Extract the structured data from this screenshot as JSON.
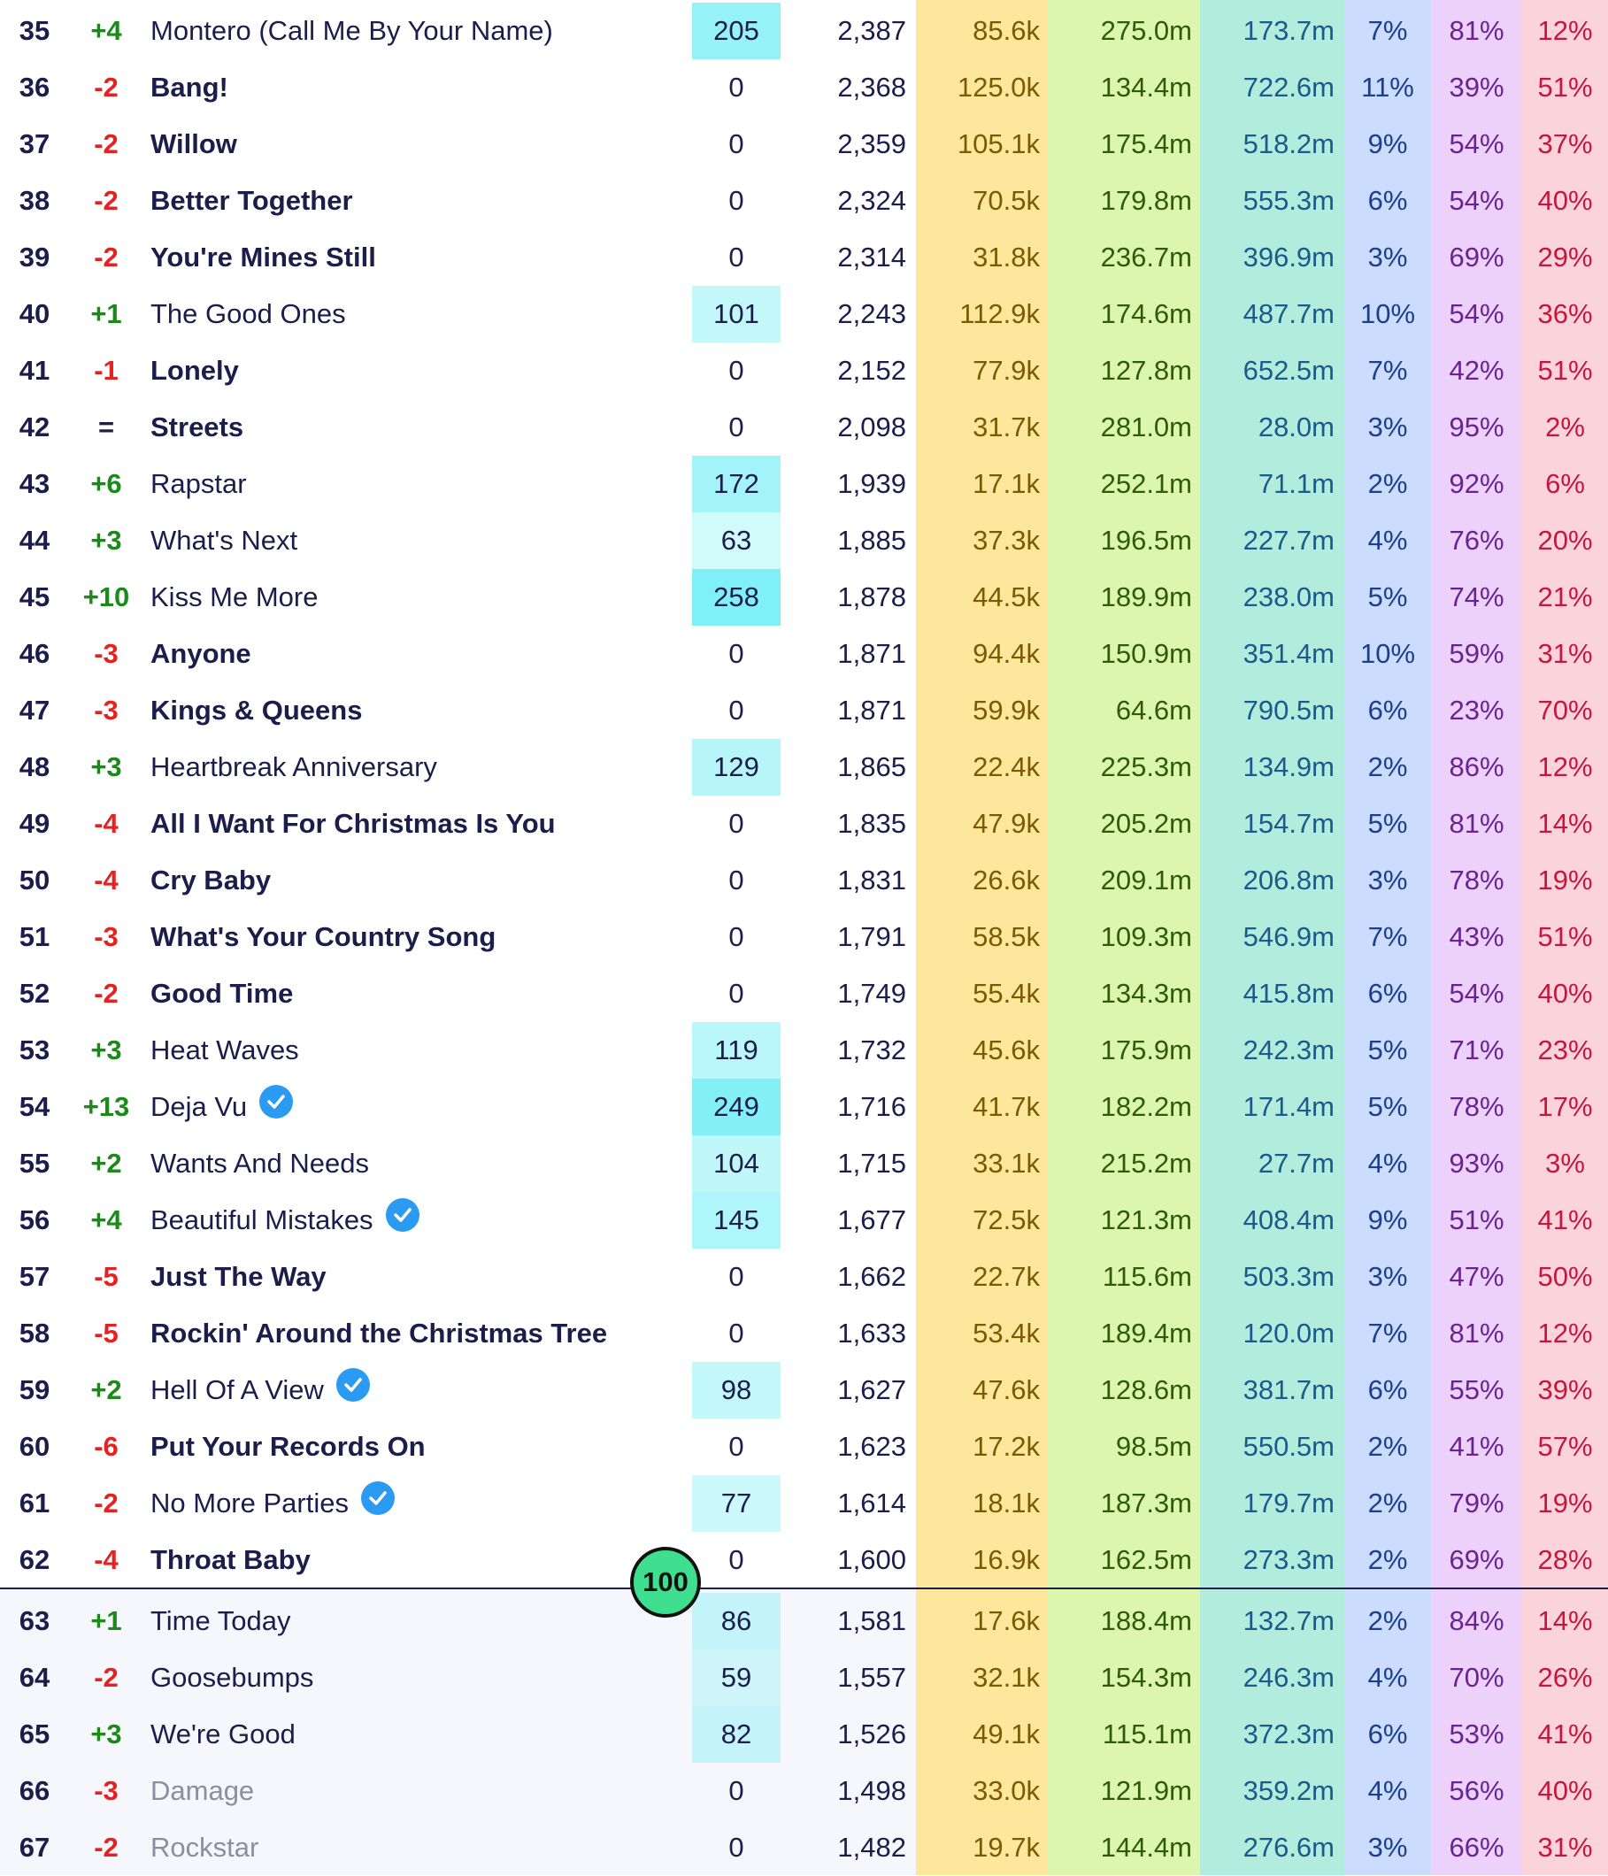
{
  "colors": {
    "plays_stripe": "#fde79c",
    "streams_stripe": "#dcf7ad",
    "total_stripe": "#b2ecdd",
    "pct1_stripe": "#cbdcff",
    "pct2_stripe": "#ecd2fa",
    "pct3_stripe": "#fbd3da",
    "spins_highlight": "#7ff0f5",
    "up": "#1b8a1b",
    "down": "#e52222",
    "milestone": "#3ee08f"
  },
  "milestone_badge": "100",
  "rows": [
    {
      "rank": "35",
      "change": "+4",
      "dir": "up",
      "title": "Montero (Call Me By Your Name)",
      "style": "normal",
      "verified": false,
      "spins": "205",
      "points": "2,387",
      "plays": "85.6k",
      "streams": "275.0m",
      "total": "173.7m",
      "pct1": "7%",
      "pct2": "81%",
      "pct3": "12%"
    },
    {
      "rank": "36",
      "change": "-2",
      "dir": "down",
      "title": "Bang!",
      "style": "bold",
      "verified": false,
      "spins": "0",
      "points": "2,368",
      "plays": "125.0k",
      "streams": "134.4m",
      "total": "722.6m",
      "pct1": "11%",
      "pct2": "39%",
      "pct3": "51%"
    },
    {
      "rank": "37",
      "change": "-2",
      "dir": "down",
      "title": "Willow",
      "style": "bold",
      "verified": false,
      "spins": "0",
      "points": "2,359",
      "plays": "105.1k",
      "streams": "175.4m",
      "total": "518.2m",
      "pct1": "9%",
      "pct2": "54%",
      "pct3": "37%"
    },
    {
      "rank": "38",
      "change": "-2",
      "dir": "down",
      "title": "Better Together",
      "style": "bold",
      "verified": false,
      "spins": "0",
      "points": "2,324",
      "plays": "70.5k",
      "streams": "179.8m",
      "total": "555.3m",
      "pct1": "6%",
      "pct2": "54%",
      "pct3": "40%"
    },
    {
      "rank": "39",
      "change": "-2",
      "dir": "down",
      "title": "You're Mines Still",
      "style": "bold",
      "verified": false,
      "spins": "0",
      "points": "2,314",
      "plays": "31.8k",
      "streams": "236.7m",
      "total": "396.9m",
      "pct1": "3%",
      "pct2": "69%",
      "pct3": "29%"
    },
    {
      "rank": "40",
      "change": "+1",
      "dir": "up",
      "title": "The Good Ones",
      "style": "normal",
      "verified": false,
      "spins": "101",
      "points": "2,243",
      "plays": "112.9k",
      "streams": "174.6m",
      "total": "487.7m",
      "pct1": "10%",
      "pct2": "54%",
      "pct3": "36%"
    },
    {
      "rank": "41",
      "change": "-1",
      "dir": "down",
      "title": "Lonely",
      "style": "bold",
      "verified": false,
      "spins": "0",
      "points": "2,152",
      "plays": "77.9k",
      "streams": "127.8m",
      "total": "652.5m",
      "pct1": "7%",
      "pct2": "42%",
      "pct3": "51%"
    },
    {
      "rank": "42",
      "change": "=",
      "dir": "same",
      "title": "Streets",
      "style": "bold",
      "verified": false,
      "spins": "0",
      "points": "2,098",
      "plays": "31.7k",
      "streams": "281.0m",
      "total": "28.0m",
      "pct1": "3%",
      "pct2": "95%",
      "pct3": "2%"
    },
    {
      "rank": "43",
      "change": "+6",
      "dir": "up",
      "title": "Rapstar",
      "style": "normal",
      "verified": false,
      "spins": "172",
      "points": "1,939",
      "plays": "17.1k",
      "streams": "252.1m",
      "total": "71.1m",
      "pct1": "2%",
      "pct2": "92%",
      "pct3": "6%"
    },
    {
      "rank": "44",
      "change": "+3",
      "dir": "up",
      "title": "What's Next",
      "style": "normal",
      "verified": false,
      "spins": "63",
      "points": "1,885",
      "plays": "37.3k",
      "streams": "196.5m",
      "total": "227.7m",
      "pct1": "4%",
      "pct2": "76%",
      "pct3": "20%"
    },
    {
      "rank": "45",
      "change": "+10",
      "dir": "up",
      "title": "Kiss Me More",
      "style": "normal",
      "verified": false,
      "spins": "258",
      "points": "1,878",
      "plays": "44.5k",
      "streams": "189.9m",
      "total": "238.0m",
      "pct1": "5%",
      "pct2": "74%",
      "pct3": "21%"
    },
    {
      "rank": "46",
      "change": "-3",
      "dir": "down",
      "title": "Anyone",
      "style": "bold",
      "verified": false,
      "spins": "0",
      "points": "1,871",
      "plays": "94.4k",
      "streams": "150.9m",
      "total": "351.4m",
      "pct1": "10%",
      "pct2": "59%",
      "pct3": "31%"
    },
    {
      "rank": "47",
      "change": "-3",
      "dir": "down",
      "title": "Kings & Queens",
      "style": "bold",
      "verified": false,
      "spins": "0",
      "points": "1,871",
      "plays": "59.9k",
      "streams": "64.6m",
      "total": "790.5m",
      "pct1": "6%",
      "pct2": "23%",
      "pct3": "70%"
    },
    {
      "rank": "48",
      "change": "+3",
      "dir": "up",
      "title": "Heartbreak Anniversary",
      "style": "normal",
      "verified": false,
      "spins": "129",
      "points": "1,865",
      "plays": "22.4k",
      "streams": "225.3m",
      "total": "134.9m",
      "pct1": "2%",
      "pct2": "86%",
      "pct3": "12%"
    },
    {
      "rank": "49",
      "change": "-4",
      "dir": "down",
      "title": "All I Want For Christmas Is You",
      "style": "bold",
      "verified": false,
      "spins": "0",
      "points": "1,835",
      "plays": "47.9k",
      "streams": "205.2m",
      "total": "154.7m",
      "pct1": "5%",
      "pct2": "81%",
      "pct3": "14%"
    },
    {
      "rank": "50",
      "change": "-4",
      "dir": "down",
      "title": "Cry Baby",
      "style": "bold",
      "verified": false,
      "spins": "0",
      "points": "1,831",
      "plays": "26.6k",
      "streams": "209.1m",
      "total": "206.8m",
      "pct1": "3%",
      "pct2": "78%",
      "pct3": "19%"
    },
    {
      "rank": "51",
      "change": "-3",
      "dir": "down",
      "title": "What's Your Country Song",
      "style": "bold",
      "verified": false,
      "spins": "0",
      "points": "1,791",
      "plays": "58.5k",
      "streams": "109.3m",
      "total": "546.9m",
      "pct1": "7%",
      "pct2": "43%",
      "pct3": "51%"
    },
    {
      "rank": "52",
      "change": "-2",
      "dir": "down",
      "title": "Good Time",
      "style": "bold",
      "verified": false,
      "spins": "0",
      "points": "1,749",
      "plays": "55.4k",
      "streams": "134.3m",
      "total": "415.8m",
      "pct1": "6%",
      "pct2": "54%",
      "pct3": "40%"
    },
    {
      "rank": "53",
      "change": "+3",
      "dir": "up",
      "title": "Heat Waves",
      "style": "normal",
      "verified": false,
      "spins": "119",
      "points": "1,732",
      "plays": "45.6k",
      "streams": "175.9m",
      "total": "242.3m",
      "pct1": "5%",
      "pct2": "71%",
      "pct3": "23%"
    },
    {
      "rank": "54",
      "change": "+13",
      "dir": "up",
      "title": "Deja Vu",
      "style": "normal",
      "verified": true,
      "spins": "249",
      "points": "1,716",
      "plays": "41.7k",
      "streams": "182.2m",
      "total": "171.4m",
      "pct1": "5%",
      "pct2": "78%",
      "pct3": "17%"
    },
    {
      "rank": "55",
      "change": "+2",
      "dir": "up",
      "title": "Wants And Needs",
      "style": "normal",
      "verified": false,
      "spins": "104",
      "points": "1,715",
      "plays": "33.1k",
      "streams": "215.2m",
      "total": "27.7m",
      "pct1": "4%",
      "pct2": "93%",
      "pct3": "3%"
    },
    {
      "rank": "56",
      "change": "+4",
      "dir": "up",
      "title": "Beautiful Mistakes",
      "style": "normal",
      "verified": true,
      "spins": "145",
      "points": "1,677",
      "plays": "72.5k",
      "streams": "121.3m",
      "total": "408.4m",
      "pct1": "9%",
      "pct2": "51%",
      "pct3": "41%"
    },
    {
      "rank": "57",
      "change": "-5",
      "dir": "down",
      "title": "Just The Way",
      "style": "bold",
      "verified": false,
      "spins": "0",
      "points": "1,662",
      "plays": "22.7k",
      "streams": "115.6m",
      "total": "503.3m",
      "pct1": "3%",
      "pct2": "47%",
      "pct3": "50%"
    },
    {
      "rank": "58",
      "change": "-5",
      "dir": "down",
      "title": "Rockin' Around the Christmas Tree",
      "style": "bold",
      "verified": false,
      "spins": "0",
      "points": "1,633",
      "plays": "53.4k",
      "streams": "189.4m",
      "total": "120.0m",
      "pct1": "7%",
      "pct2": "81%",
      "pct3": "12%"
    },
    {
      "rank": "59",
      "change": "+2",
      "dir": "up",
      "title": "Hell Of A View",
      "style": "normal",
      "verified": true,
      "spins": "98",
      "points": "1,627",
      "plays": "47.6k",
      "streams": "128.6m",
      "total": "381.7m",
      "pct1": "6%",
      "pct2": "55%",
      "pct3": "39%"
    },
    {
      "rank": "60",
      "change": "-6",
      "dir": "down",
      "title": "Put Your Records On",
      "style": "bold",
      "verified": false,
      "spins": "0",
      "points": "1,623",
      "plays": "17.2k",
      "streams": "98.5m",
      "total": "550.5m",
      "pct1": "2%",
      "pct2": "41%",
      "pct3": "57%"
    },
    {
      "rank": "61",
      "change": "-2",
      "dir": "down",
      "title": "No More Parties",
      "style": "normal",
      "verified": true,
      "spins": "77",
      "points": "1,614",
      "plays": "18.1k",
      "streams": "187.3m",
      "total": "179.7m",
      "pct1": "2%",
      "pct2": "79%",
      "pct3": "19%"
    },
    {
      "rank": "62",
      "change": "-4",
      "dir": "down",
      "title": "Throat Baby",
      "style": "bold",
      "verified": false,
      "spins": "0",
      "points": "1,600",
      "plays": "16.9k",
      "streams": "162.5m",
      "total": "273.3m",
      "pct1": "2%",
      "pct2": "69%",
      "pct3": "28%"
    },
    {
      "rank": "63",
      "change": "+1",
      "dir": "up",
      "title": "Time Today",
      "style": "normal",
      "verified": false,
      "spins": "86",
      "points": "1,581",
      "plays": "17.6k",
      "streams": "188.4m",
      "total": "132.7m",
      "pct1": "2%",
      "pct2": "84%",
      "pct3": "14%"
    },
    {
      "rank": "64",
      "change": "-2",
      "dir": "down",
      "title": "Goosebumps",
      "style": "normal",
      "verified": false,
      "spins": "59",
      "points": "1,557",
      "plays": "32.1k",
      "streams": "154.3m",
      "total": "246.3m",
      "pct1": "4%",
      "pct2": "70%",
      "pct3": "26%"
    },
    {
      "rank": "65",
      "change": "+3",
      "dir": "up",
      "title": "We're Good",
      "style": "normal",
      "verified": false,
      "spins": "82",
      "points": "1,526",
      "plays": "49.1k",
      "streams": "115.1m",
      "total": "372.3m",
      "pct1": "6%",
      "pct2": "53%",
      "pct3": "41%"
    },
    {
      "rank": "66",
      "change": "-3",
      "dir": "down",
      "title": "Damage",
      "style": "faded",
      "verified": false,
      "spins": "0",
      "points": "1,498",
      "plays": "33.0k",
      "streams": "121.9m",
      "total": "359.2m",
      "pct1": "4%",
      "pct2": "56%",
      "pct3": "40%"
    },
    {
      "rank": "67",
      "change": "-2",
      "dir": "down",
      "title": "Rockstar",
      "style": "faded",
      "verified": false,
      "spins": "0",
      "points": "1,482",
      "plays": "19.7k",
      "streams": "144.4m",
      "total": "276.6m",
      "pct1": "3%",
      "pct2": "66%",
      "pct3": "31%"
    }
  ]
}
